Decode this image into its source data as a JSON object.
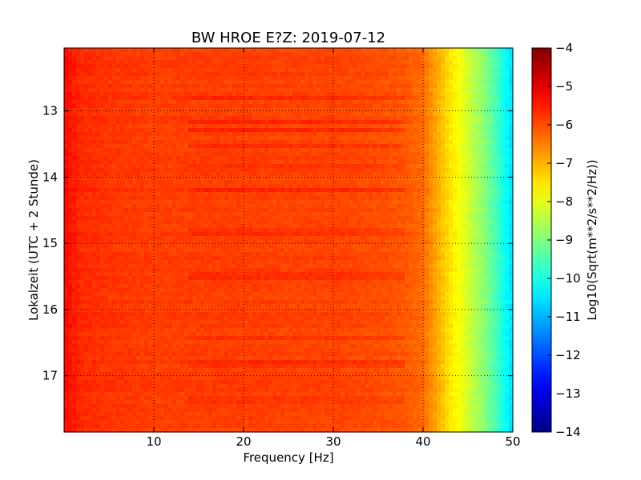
{
  "chart_data": {
    "type": "heatmap",
    "title": "BW HROE E?Z: 2019-07-12",
    "xlabel": "Frequency [Hz]",
    "ylabel": "Lokalzeit (UTC + 2 Stunde)",
    "xlim": [
      0,
      50
    ],
    "ylim": [
      17.85,
      12.05
    ],
    "x_ticks": [
      10,
      20,
      30,
      40,
      50
    ],
    "x_tick_labels": [
      "10",
      "20",
      "30",
      "40",
      "50"
    ],
    "y_ticks": [
      13,
      14,
      15,
      16,
      17
    ],
    "y_tick_labels": [
      "13",
      "14",
      "15",
      "16",
      "17"
    ],
    "grid": true,
    "colormap": "jet",
    "colorbar": {
      "label": "Log10(Sqrt(m**2/s**2/Hz))",
      "range": [
        -14,
        -4
      ],
      "ticks": [
        -4,
        -5,
        -6,
        -7,
        -8,
        -9,
        -10,
        -11,
        -12,
        -13,
        -14
      ],
      "tick_labels": [
        "−4",
        "−5",
        "−6",
        "−7",
        "−8",
        "−9",
        "−10",
        "−11",
        "−12",
        "−13",
        "−14"
      ]
    },
    "frequency_profile": {
      "frequency_hz": [
        0,
        0.5,
        2,
        5,
        10,
        15,
        20,
        25,
        30,
        35,
        38,
        40,
        41,
        42,
        43,
        44,
        45,
        46,
        47,
        48,
        49,
        50
      ],
      "log10_amplitude": [
        -5.3,
        -5.4,
        -5.65,
        -5.75,
        -5.85,
        -5.85,
        -5.85,
        -5.9,
        -5.9,
        -6.0,
        -6.1,
        -6.3,
        -6.7,
        -7.1,
        -7.5,
        -7.8,
        -8.2,
        -8.6,
        -9.0,
        -9.5,
        -10.1,
        -10.6
      ]
    },
    "time_bands": [
      {
        "hour": 12.82,
        "offset": 0.2
      },
      {
        "hour": 13.18,
        "offset": 0.25
      },
      {
        "hour": 13.27,
        "offset": 0.3
      },
      {
        "hour": 13.55,
        "offset": 0.25
      },
      {
        "hour": 13.85,
        "offset": 0.2
      },
      {
        "hour": 14.18,
        "offset": 0.25
      },
      {
        "hour": 14.82,
        "offset": 0.15
      },
      {
        "hour": 15.5,
        "offset": 0.2
      },
      {
        "hour": 16.45,
        "offset": 0.15
      },
      {
        "hour": 16.82,
        "offset": 0.2
      },
      {
        "hour": 17.37,
        "offset": 0.15
      }
    ]
  }
}
